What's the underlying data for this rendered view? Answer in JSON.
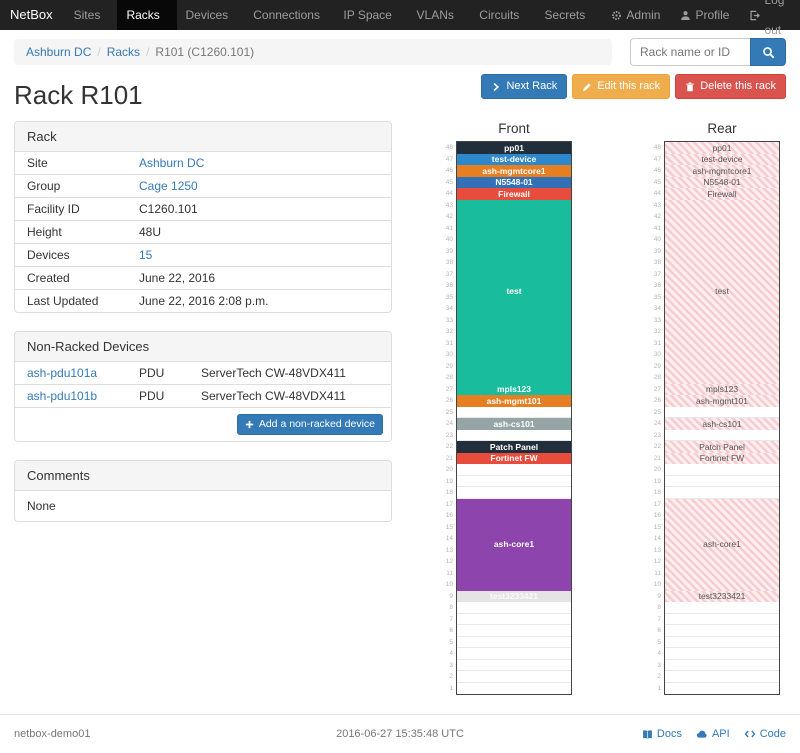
{
  "navbar": {
    "brand": "NetBox",
    "items": [
      {
        "label": "Sites"
      },
      {
        "label": "Racks",
        "active": true
      },
      {
        "label": "Devices"
      },
      {
        "label": "Connections"
      },
      {
        "label": "IP Space"
      },
      {
        "label": "VLANs"
      },
      {
        "label": "Circuits"
      },
      {
        "label": "Secrets"
      }
    ],
    "right": [
      {
        "label": "Admin",
        "icon": "gear-icon"
      },
      {
        "label": "Profile",
        "icon": "user-icon"
      },
      {
        "label": "Log out",
        "icon": "logout-icon"
      }
    ]
  },
  "breadcrumb": {
    "items": [
      "Ashburn DC",
      "Racks",
      "R101 (C1260.101)"
    ]
  },
  "search": {
    "placeholder": "Rack name or ID"
  },
  "actions": [
    {
      "label": "Next Rack",
      "style": "primary",
      "icon": "chevron-right-icon"
    },
    {
      "label": "Edit this rack",
      "style": "warning",
      "icon": "pencil-icon"
    },
    {
      "label": "Delete this rack",
      "style": "danger",
      "icon": "trash-icon"
    }
  ],
  "page_title": "Rack R101",
  "rack_panel": {
    "title": "Rack",
    "rows": [
      {
        "label": "Site",
        "value": "Ashburn DC",
        "link": true
      },
      {
        "label": "Group",
        "value": "Cage 1250",
        "link": true
      },
      {
        "label": "Facility ID",
        "value": "C1260.101",
        "link": false
      },
      {
        "label": "Height",
        "value": "48U",
        "link": false
      },
      {
        "label": "Devices",
        "value": "15",
        "link": true
      },
      {
        "label": "Created",
        "value": "June 22, 2016",
        "link": false
      },
      {
        "label": "Last Updated",
        "value": "June 22, 2016 2:08 p.m.",
        "link": false
      }
    ]
  },
  "non_racked": {
    "title": "Non-Racked Devices",
    "rows": [
      {
        "name": "ash-pdu101a",
        "type": "PDU",
        "model": "ServerTech CW-48VDX411"
      },
      {
        "name": "ash-pdu101b",
        "type": "PDU",
        "model": "ServerTech CW-48VDX411"
      }
    ],
    "add_label": "Add a non-racked device"
  },
  "comments": {
    "title": "Comments",
    "body": "None"
  },
  "elevations": {
    "front_label": "Front",
    "rear_label": "Rear",
    "units": 48,
    "devices": [
      {
        "name": "pp01",
        "top_u": 48,
        "height": 1,
        "color": "#212f3c",
        "text": "#ffffff"
      },
      {
        "name": "test-device",
        "top_u": 47,
        "height": 1,
        "color": "#2d89cc",
        "text": "#ffffff"
      },
      {
        "name": "ash-mgmtcore1",
        "top_u": 46,
        "height": 1,
        "color": "#e67e22",
        "text": "#ffffff"
      },
      {
        "name": "N5548-01",
        "top_u": 45,
        "height": 1,
        "color": "#3270b8",
        "text": "#ffffff"
      },
      {
        "name": "Firewall",
        "top_u": 44,
        "height": 1,
        "color": "#e74c3c",
        "text": "#ffffff"
      },
      {
        "name": "test",
        "top_u": 43,
        "height": 16,
        "color": "#19bc9c",
        "text": "#ffffff"
      },
      {
        "name": "mpls123",
        "top_u": 27,
        "height": 1,
        "color": "#19bc9c",
        "text": "#ffffff"
      },
      {
        "name": "ash-mgmt101",
        "top_u": 26,
        "height": 1,
        "color": "#e67e22",
        "text": "#ffffff"
      },
      {
        "name": "ash-cs101",
        "top_u": 24,
        "height": 1,
        "color": "#95a5a6",
        "text": "#ffffff"
      },
      {
        "name": "Patch Panel",
        "top_u": 22,
        "height": 1,
        "color": "#212f3c",
        "text": "#ffffff"
      },
      {
        "name": "Fortinet FW",
        "top_u": 21,
        "height": 1,
        "color": "#e74c3c",
        "text": "#ffffff"
      },
      {
        "name": "ash-core1",
        "top_u": 17,
        "height": 8,
        "color": "#8e44ad",
        "text": "#ffffff"
      },
      {
        "name": "test3233421",
        "top_u": 9,
        "height": 1,
        "color": "#e4e4e4",
        "text": "#fafafa"
      }
    ]
  },
  "footer": {
    "hostname": "netbox-demo01",
    "timestamp": "2016-06-27 15:35:48 UTC",
    "links": [
      {
        "label": "Docs",
        "icon": "book-icon"
      },
      {
        "label": "API",
        "icon": "cloud-icon"
      },
      {
        "label": "Code",
        "icon": "code-icon"
      }
    ]
  }
}
